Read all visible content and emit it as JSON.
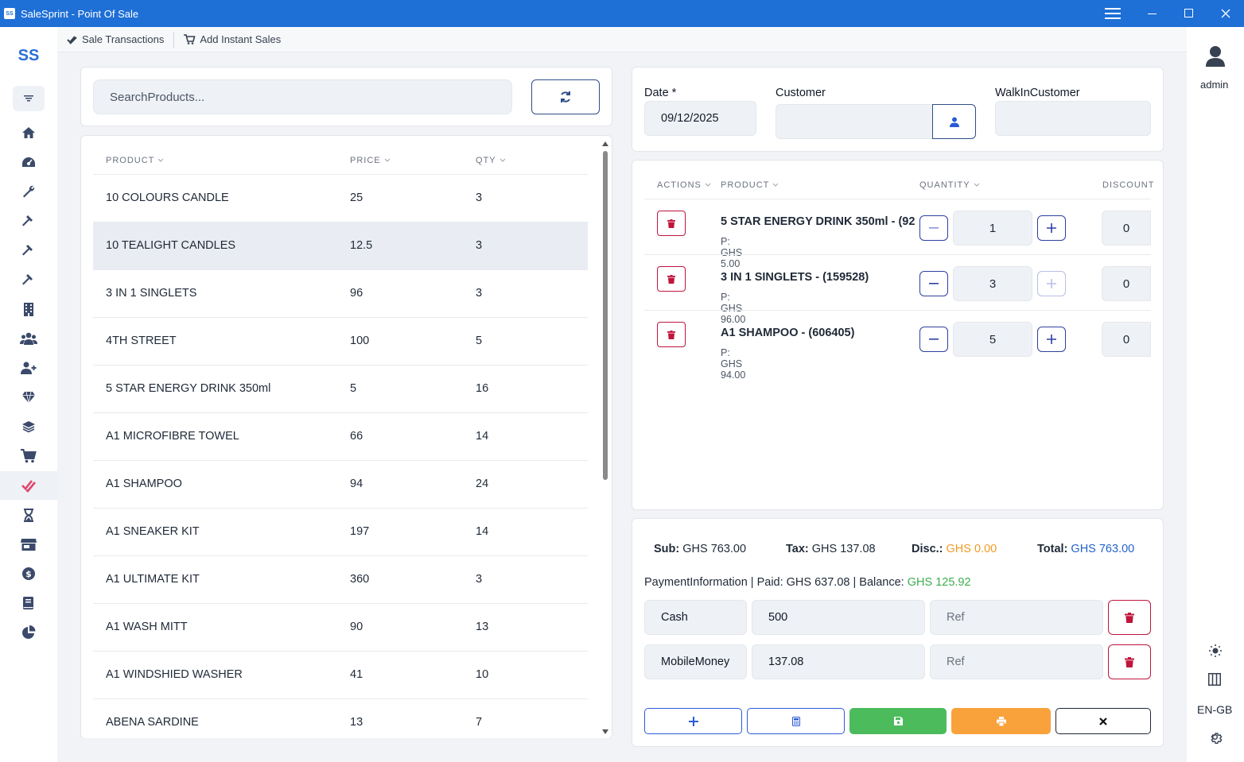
{
  "window": {
    "title": "SaleSprint - Point Of Sale",
    "logo_text": "SS"
  },
  "app_logo_text": "SS",
  "tabs": [
    {
      "label": "Sale Transactions",
      "icon": "check-double-icon"
    },
    {
      "label": "Add Instant Sales",
      "icon": "cart-icon"
    }
  ],
  "sidebar": {
    "items": [
      "home-icon",
      "dashboard-gauge-icon",
      "wrench-icon",
      "hammer-icon",
      "hammer-icon",
      "hammer-icon",
      "building-icon",
      "users-icon",
      "user-plus-icon",
      "gem-icon",
      "layers-icon",
      "cart-icon",
      "check-double-icon",
      "hourglass-icon",
      "store-icon",
      "money-bag-icon",
      "book-icon",
      "pie-chart-icon"
    ],
    "active_index": 12
  },
  "user": {
    "name": "admin"
  },
  "locale": "EN-GB",
  "search": {
    "placeholder": "SearchProducts..."
  },
  "products_table": {
    "headers": [
      "PRODUCT",
      "PRICE",
      "QTY"
    ],
    "rows": [
      {
        "name": "10 COLOURS CANDLE",
        "price": "25",
        "qty": "3"
      },
      {
        "name": "10 TEALIGHT CANDLES",
        "price": "12.5",
        "qty": "3"
      },
      {
        "name": "3 IN 1 SINGLETS",
        "price": "96",
        "qty": "3"
      },
      {
        "name": "4TH STREET",
        "price": "100",
        "qty": "5"
      },
      {
        "name": "5 STAR ENERGY DRINK 350ml",
        "price": "5",
        "qty": "16"
      },
      {
        "name": "A1 MICROFIBRE TOWEL",
        "price": "66",
        "qty": "14"
      },
      {
        "name": "A1 SHAMPOO",
        "price": "94",
        "qty": "24"
      },
      {
        "name": "A1 SNEAKER KIT",
        "price": "197",
        "qty": "14"
      },
      {
        "name": "A1 ULTIMATE KIT",
        "price": "360",
        "qty": "3"
      },
      {
        "name": "A1 WASH MITT",
        "price": "90",
        "qty": "13"
      },
      {
        "name": "A1 WINDSHIED WASHER",
        "price": "41",
        "qty": "10"
      },
      {
        "name": "ABENA SARDINE",
        "price": "13",
        "qty": "7"
      }
    ],
    "selected_index": 1
  },
  "form": {
    "date_label": "Date *",
    "date_value": "09/12/2025",
    "customer_label": "Customer",
    "customer_value": "",
    "walkin_label": "WalkInCustomer",
    "walkin_value": ""
  },
  "cart": {
    "headers": [
      "ACTIONS",
      "PRODUCT",
      "QUANTITY",
      "DISCOUNT"
    ],
    "items": [
      {
        "name": "5 STAR ENERGY DRINK 350ml - (92",
        "price": "P: GHS  5.00",
        "qty": "1",
        "discount": "0"
      },
      {
        "name": "3 IN 1 SINGLETS - (159528)",
        "price": "P: GHS  96.00",
        "qty": "3",
        "discount": "0"
      },
      {
        "name": "A1 SHAMPOO - (606405)",
        "price": "P: GHS  94.00",
        "qty": "5",
        "discount": "0"
      }
    ]
  },
  "summary": {
    "sub_label": "Sub:",
    "sub_value": "GHS  763.00",
    "tax_label": "Tax:",
    "tax_value": "GHS  137.08",
    "disc_label": "Disc.:",
    "disc_value": "GHS  0.00",
    "total_label": "Total:",
    "total_value": "GHS  763.00",
    "payment_text": "PaymentInformation | Paid: GHS  637.08 | Balance:",
    "balance_value": "GHS  125.92"
  },
  "payments": [
    {
      "method": "Cash",
      "amount": "500",
      "ref_placeholder": "Ref"
    },
    {
      "method": "MobileMoney",
      "amount": "137.08",
      "ref_placeholder": "Ref"
    }
  ],
  "colors": {
    "titlebar": "#1e6fd6",
    "accent": "#2f3fa0",
    "danger": "#c0143c",
    "success": "#4cbb5c",
    "warning": "#f9a23c",
    "total_blue": "#2563c9"
  }
}
